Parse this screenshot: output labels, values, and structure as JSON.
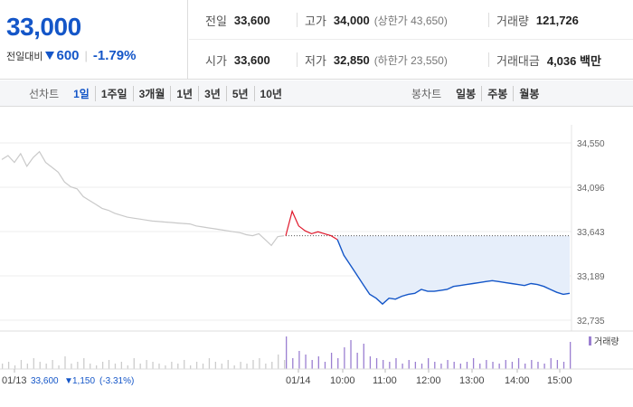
{
  "quote": {
    "price": "33,000",
    "change_label": "전일대비",
    "change_value": "600",
    "change_rate": "-1.79%",
    "stats": {
      "prev_label": "전일",
      "prev_value": "33,600",
      "high_label": "고가",
      "high_value": "34,000",
      "upper_limit": "(상한가 43,650)",
      "volume_label": "거래량",
      "volume_value": "121,726",
      "open_label": "시가",
      "open_value": "33,600",
      "low_label": "저가",
      "low_value": "32,850",
      "lower_limit": "(하한가 23,550)",
      "amount_label": "거래대금",
      "amount_value": "4,036 백만"
    }
  },
  "tabs": {
    "line_label": "선차트",
    "line_items": [
      "1일",
      "1주일",
      "3개월",
      "1년",
      "3년",
      "5년",
      "10년"
    ],
    "active": "1일",
    "candle_label": "봉차트",
    "candle_items": [
      "일봉",
      "주봉",
      "월봉"
    ]
  },
  "colors": {
    "up": "#e0182b",
    "down": "#1456c8",
    "prev_day_line": "#c9c9c9",
    "fill": "#e6eefa",
    "volume_today": "#9b7fd1",
    "volume_prev": "#cccccc"
  },
  "chart_data": {
    "type": "line",
    "ylim": [
      32735,
      34550
    ],
    "yticks": [
      "34,550",
      "34,096",
      "33,643",
      "33,189",
      "32,735"
    ],
    "ytick_values": [
      34550,
      34096,
      33643,
      33189,
      32735
    ],
    "reference_price": 33600,
    "x_labels": [
      "01/13",
      "01/14",
      "10:00",
      "11:00",
      "12:00",
      "13:00",
      "14:00",
      "15:00"
    ],
    "prev_day_note": {
      "date": "01/13",
      "close": "33,600",
      "change": "1,150",
      "rate": "(-3.31%)"
    },
    "volume_legend": "거래량",
    "series": [
      {
        "segment": "prev_day",
        "values": [
          34380,
          34420,
          34350,
          34440,
          34310,
          34400,
          34460,
          34350,
          34300,
          34250,
          34150,
          34100,
          34080,
          34000,
          33960,
          33920,
          33880,
          33860,
          33830,
          33810,
          33790,
          33780,
          33770,
          33760,
          33750,
          33745,
          33740,
          33735,
          33730,
          33725,
          33720,
          33700,
          33690,
          33680,
          33670,
          33660,
          33650,
          33640,
          33630,
          33610,
          33600,
          33620,
          33560,
          33500,
          33590,
          33600
        ]
      },
      {
        "segment": "today",
        "values": [
          33600,
          33850,
          33700,
          33650,
          33620,
          33640,
          33620,
          33600,
          33560,
          33400,
          33300,
          33200,
          33100,
          33000,
          32960,
          32900,
          32960,
          32950,
          32980,
          33000,
          33010,
          33050,
          33030,
          33030,
          33040,
          33050,
          33080,
          33090,
          33100,
          33110,
          33120,
          33130,
          33140,
          33130,
          33120,
          33110,
          33100,
          33090,
          33110,
          33100,
          33080,
          33050,
          33020,
          33000,
          33010
        ]
      }
    ],
    "volume_prev": [
      3,
      4,
      2,
      5,
      3,
      6,
      4,
      3,
      5,
      2,
      7,
      3,
      4,
      6,
      3,
      2,
      4,
      5,
      3,
      4,
      2,
      6,
      3,
      5,
      4,
      3,
      2,
      4,
      3,
      5,
      2,
      4,
      3,
      6,
      4,
      3,
      5,
      2,
      4,
      3,
      5,
      6,
      3,
      4,
      8,
      5
    ],
    "volume_today": [
      18,
      6,
      10,
      8,
      5,
      7,
      4,
      9,
      6,
      12,
      16,
      9,
      14,
      7,
      6,
      5,
      4,
      6,
      3,
      5,
      4,
      3,
      6,
      4,
      3,
      5,
      4,
      3,
      4,
      6,
      3,
      5,
      4,
      3,
      5,
      4,
      6,
      3,
      5,
      4,
      3,
      6,
      5,
      4,
      15
    ]
  }
}
